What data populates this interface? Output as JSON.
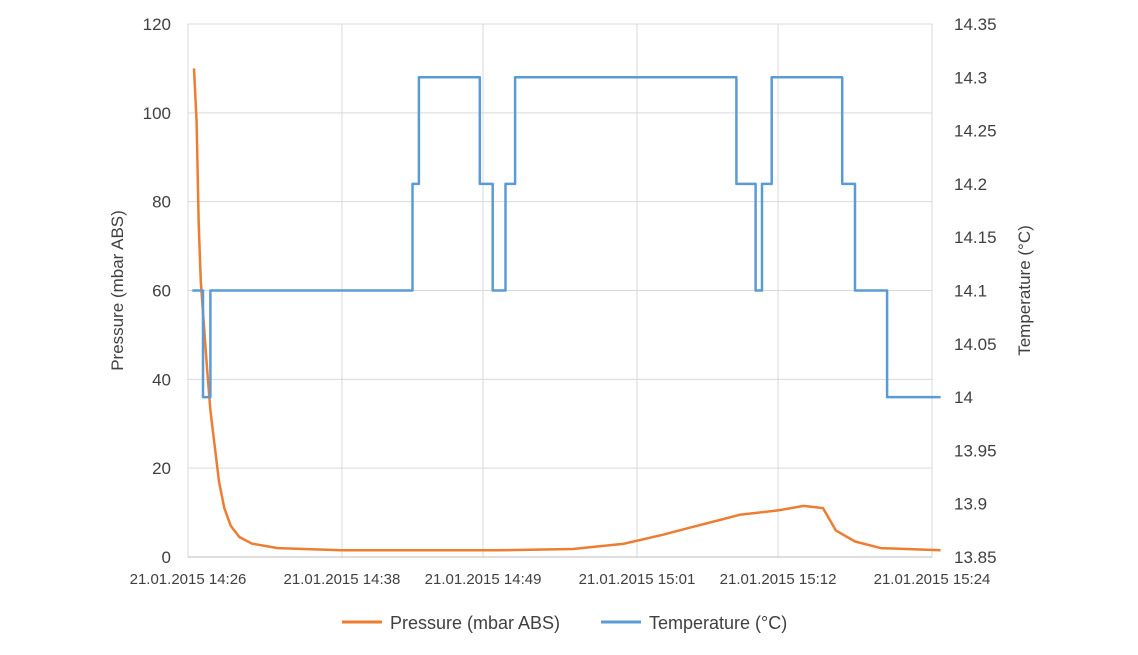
{
  "chart_data": {
    "type": "line",
    "title": "",
    "x_tick_labels": [
      "21.01.2015 14:26",
      "21.01.2015 14:38",
      "21.01.2015 14:49",
      "21.01.2015 15:01",
      "21.01.2015 15:12",
      "21.01.2015 15:24"
    ],
    "x_range": [
      "21.01.2015 14:26",
      "21.01.2015 15:24"
    ],
    "grid": "vertical and horizontal major gridlines",
    "legend_position": "bottom",
    "y_left": {
      "label": "Pressure  (mbar ABS)",
      "range": [
        0,
        120
      ],
      "ticks": [
        0,
        20,
        40,
        60,
        80,
        100,
        120
      ]
    },
    "y_right": {
      "label": "Temperature (°C)",
      "range": [
        13.85,
        14.35
      ],
      "ticks": [
        "13.85",
        "13.9",
        "13.95",
        "14",
        "14.05",
        "14.1",
        "14.15",
        "14.2",
        "14.25",
        "14.3",
        "14.35"
      ]
    },
    "series": [
      {
        "name": "Pressure (mbar ABS)",
        "axis": "left",
        "color": "#ED7D31",
        "points": [
          [
            "14:26:28",
            110
          ],
          [
            "14:26:40",
            98
          ],
          [
            "14:26:50",
            75
          ],
          [
            "14:27:00",
            62
          ],
          [
            "14:27:15",
            52
          ],
          [
            "14:27:30",
            42
          ],
          [
            "14:27:45",
            33
          ],
          [
            "14:28:05",
            25
          ],
          [
            "14:28:25",
            17
          ],
          [
            "14:28:50",
            11
          ],
          [
            "14:29:20",
            7
          ],
          [
            "14:30:00",
            4.5
          ],
          [
            "14:31:00",
            3
          ],
          [
            "14:33:00",
            2
          ],
          [
            "14:38:00",
            1.5
          ],
          [
            "14:45:00",
            1.5
          ],
          [
            "14:50:00",
            1.5
          ],
          [
            "14:56:00",
            1.8
          ],
          [
            "15:00:00",
            3
          ],
          [
            "15:03:00",
            5
          ],
          [
            "15:05:00",
            6.5
          ],
          [
            "15:07:00",
            8
          ],
          [
            "15:09:00",
            9.5
          ],
          [
            "15:12:00",
            10.5
          ],
          [
            "15:14:00",
            11.5
          ],
          [
            "15:15:30",
            11
          ],
          [
            "15:16:30",
            6
          ],
          [
            "15:18:00",
            3.5
          ],
          [
            "15:20:00",
            2
          ],
          [
            "15:24:40",
            1.5
          ]
        ]
      },
      {
        "name": "Temperature (°C)",
        "axis": "right",
        "color": "#5B9BD5",
        "points": [
          [
            "14:26:20",
            14.1
          ],
          [
            "14:27:10",
            14.1
          ],
          [
            "14:27:10",
            14.0
          ],
          [
            "14:27:45",
            14.0
          ],
          [
            "14:27:45",
            14.1
          ],
          [
            "14:43:30",
            14.1
          ],
          [
            "14:43:30",
            14.2
          ],
          [
            "14:44:00",
            14.2
          ],
          [
            "14:44:00",
            14.3
          ],
          [
            "14:48:45",
            14.3
          ],
          [
            "14:48:45",
            14.2
          ],
          [
            "14:49:45",
            14.2
          ],
          [
            "14:49:45",
            14.1
          ],
          [
            "14:50:45",
            14.1
          ],
          [
            "14:50:45",
            14.2
          ],
          [
            "14:51:30",
            14.2
          ],
          [
            "14:51:30",
            14.3
          ],
          [
            "15:08:45",
            14.3
          ],
          [
            "15:08:45",
            14.2
          ],
          [
            "15:10:15",
            14.2
          ],
          [
            "15:10:15",
            14.1
          ],
          [
            "15:10:45",
            14.1
          ],
          [
            "15:10:45",
            14.2
          ],
          [
            "15:11:30",
            14.2
          ],
          [
            "15:11:30",
            14.3
          ],
          [
            "15:17:00",
            14.3
          ],
          [
            "15:17:00",
            14.2
          ],
          [
            "15:18:00",
            14.2
          ],
          [
            "15:18:00",
            14.1
          ],
          [
            "15:20:30",
            14.1
          ],
          [
            "15:20:30",
            14.0
          ],
          [
            "15:24:40",
            14.0
          ]
        ]
      }
    ]
  }
}
